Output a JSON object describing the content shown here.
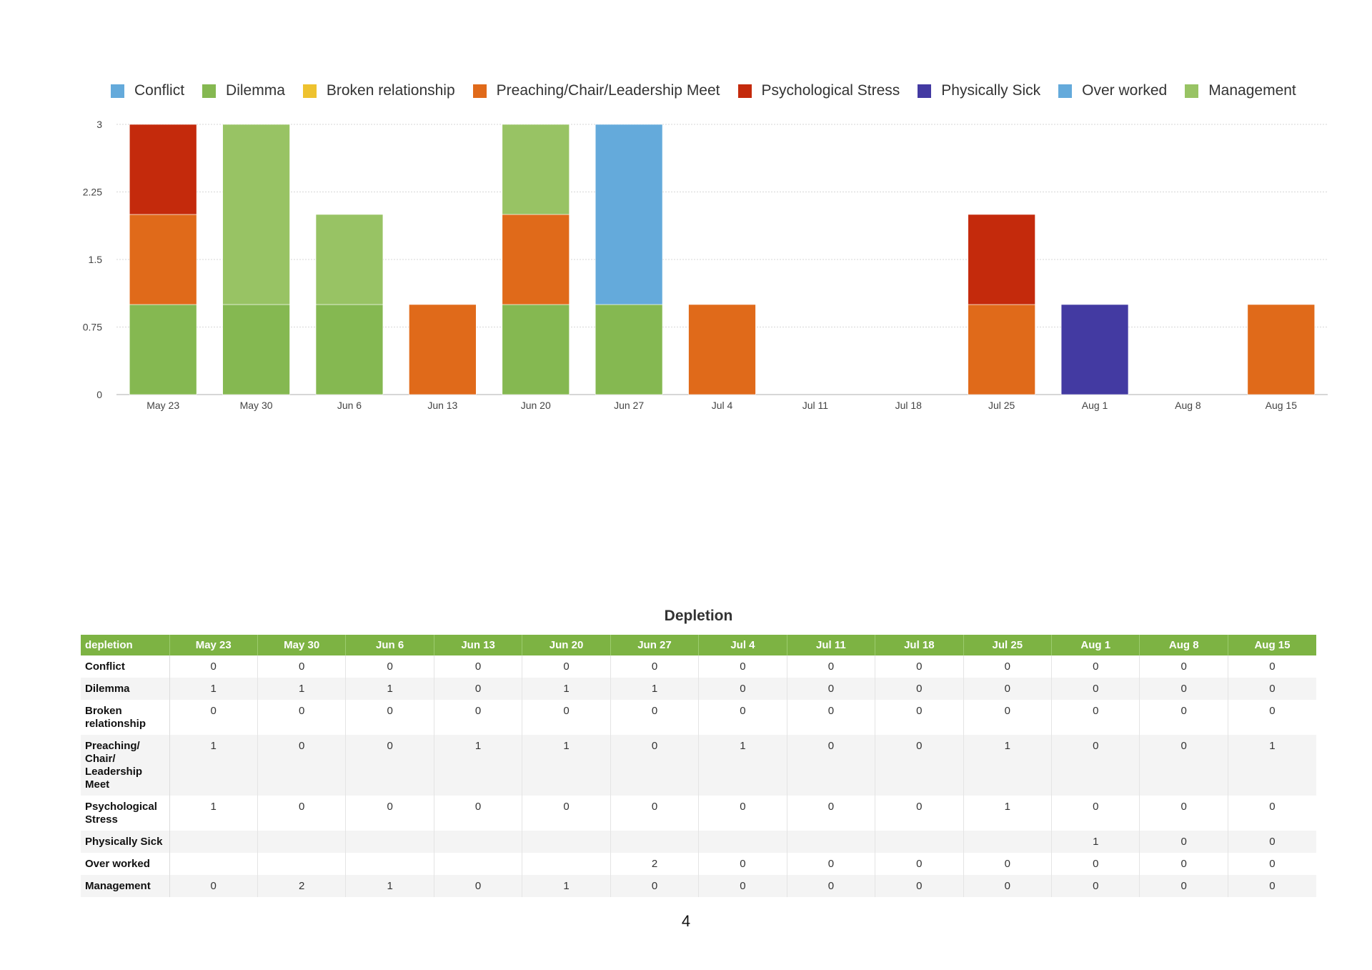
{
  "chart_data": {
    "type": "bar",
    "stacked": true,
    "categories": [
      "May 23",
      "May 30",
      "Jun 6",
      "Jun 13",
      "Jun 20",
      "Jun 27",
      "Jul 4",
      "Jul 11",
      "Jul 18",
      "Jul 25",
      "Aug 1",
      "Aug 8",
      "Aug 15"
    ],
    "ylim": [
      0,
      3
    ],
    "yticks": [
      "0",
      "0.75",
      "1.5",
      "2.25",
      "3"
    ],
    "grid": true,
    "legend_position": "top",
    "series": [
      {
        "name": "Conflict",
        "color": "#64aadb",
        "values": [
          0,
          0,
          0,
          0,
          0,
          0,
          0,
          0,
          0,
          0,
          0,
          0,
          0
        ]
      },
      {
        "name": "Dilemma",
        "color": "#85b851",
        "values": [
          1,
          1,
          1,
          0,
          1,
          1,
          0,
          0,
          0,
          0,
          0,
          0,
          0
        ]
      },
      {
        "name": "Broken relationship",
        "color": "#eec22f",
        "values": [
          0,
          0,
          0,
          0,
          0,
          0,
          0,
          0,
          0,
          0,
          0,
          0,
          0
        ]
      },
      {
        "name": "Preaching/Chair/Leadership Meet",
        "color": "#e06a1a",
        "values": [
          1,
          0,
          0,
          1,
          1,
          0,
          1,
          0,
          0,
          1,
          0,
          0,
          1
        ]
      },
      {
        "name": "Psychological Stress",
        "color": "#c42a0c",
        "values": [
          1,
          0,
          0,
          0,
          0,
          0,
          0,
          0,
          0,
          1,
          0,
          0,
          0
        ]
      },
      {
        "name": "Physically Sick",
        "color": "#433aa2",
        "values": [
          0,
          0,
          0,
          0,
          0,
          0,
          0,
          0,
          0,
          0,
          1,
          0,
          0
        ]
      },
      {
        "name": "Over worked",
        "color": "#64aadb",
        "values": [
          0,
          0,
          0,
          0,
          0,
          2,
          0,
          0,
          0,
          0,
          0,
          0,
          0
        ]
      },
      {
        "name": "Management",
        "color": "#98c364",
        "values": [
          0,
          2,
          1,
          0,
          1,
          0,
          0,
          0,
          0,
          0,
          0,
          0,
          0
        ]
      }
    ]
  },
  "table": {
    "title": "Depletion",
    "corner": "depletion",
    "columns": [
      "May 23",
      "May 30",
      "Jun 6",
      "Jun 13",
      "Jun 20",
      "Jun 27",
      "Jul 4",
      "Jul 11",
      "Jul 18",
      "Jul 25",
      "Aug 1",
      "Aug 8",
      "Aug 15"
    ],
    "rows": [
      {
        "label": "Conflict",
        "cells": [
          "0",
          "0",
          "0",
          "0",
          "0",
          "0",
          "0",
          "0",
          "0",
          "0",
          "0",
          "0",
          "0"
        ]
      },
      {
        "label": "Dilemma",
        "cells": [
          "1",
          "1",
          "1",
          "0",
          "1",
          "1",
          "0",
          "0",
          "0",
          "0",
          "0",
          "0",
          "0"
        ]
      },
      {
        "label": "Broken relationship",
        "cells": [
          "0",
          "0",
          "0",
          "0",
          "0",
          "0",
          "0",
          "0",
          "0",
          "0",
          "0",
          "0",
          "0"
        ]
      },
      {
        "label": "Preaching/ Chair/ Leadership Meet",
        "cells": [
          "1",
          "0",
          "0",
          "1",
          "1",
          "0",
          "1",
          "0",
          "0",
          "1",
          "0",
          "0",
          "1"
        ]
      },
      {
        "label": "Psychological Stress",
        "cells": [
          "1",
          "0",
          "0",
          "0",
          "0",
          "0",
          "0",
          "0",
          "0",
          "1",
          "0",
          "0",
          "0"
        ]
      },
      {
        "label": "Physically Sick",
        "cells": [
          "",
          "",
          "",
          "",
          "",
          "",
          "",
          "",
          "",
          "",
          "1",
          "0",
          "0"
        ]
      },
      {
        "label": "Over worked",
        "cells": [
          "",
          "",
          "",
          "",
          "",
          "2",
          "0",
          "0",
          "0",
          "0",
          "0",
          "0",
          "0"
        ]
      },
      {
        "label": "Management",
        "cells": [
          "0",
          "2",
          "1",
          "0",
          "1",
          "0",
          "0",
          "0",
          "0",
          "0",
          "0",
          "0",
          "0"
        ]
      }
    ]
  },
  "page_number": "4"
}
